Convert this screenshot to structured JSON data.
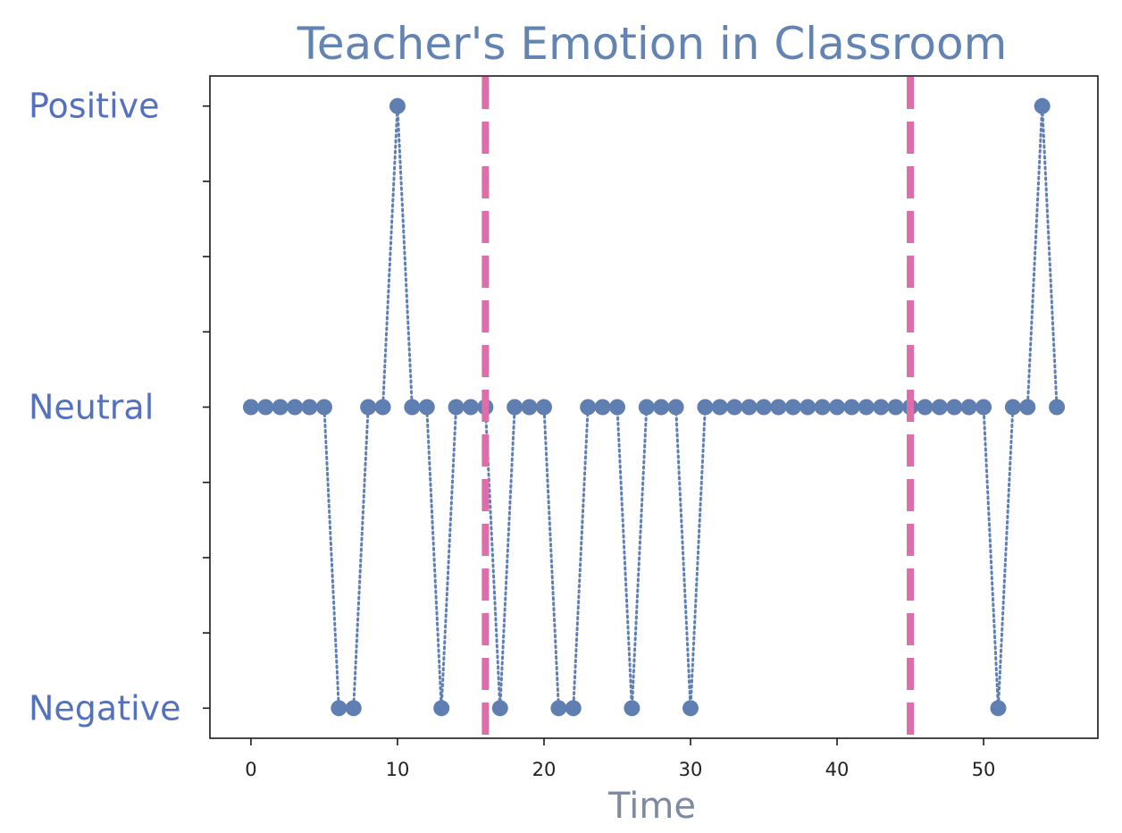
{
  "chart_data": {
    "type": "line",
    "title": "Teacher's Emotion in Classroom",
    "xlabel": "Time",
    "ylabel": "",
    "xlim": [
      -2.8,
      57.8
    ],
    "ylim": [
      -1.1,
      1.1
    ],
    "xticks": [
      0,
      10,
      20,
      30,
      40,
      50
    ],
    "xtick_labels": [
      "0",
      "10",
      "20",
      "30",
      "40",
      "50"
    ],
    "yticks": [
      -1,
      -0.75,
      -0.5,
      -0.25,
      0,
      0.25,
      0.5,
      0.75,
      1
    ],
    "category_labels": [
      {
        "value": 1,
        "label": "Positive"
      },
      {
        "value": 0,
        "label": "Neutral"
      },
      {
        "value": -1,
        "label": "Negative"
      }
    ],
    "series": [
      {
        "x": [
          0,
          1,
          2,
          3,
          4,
          5,
          6,
          7,
          8,
          9,
          10,
          11,
          12,
          13,
          14,
          15,
          16,
          17,
          18,
          19,
          20,
          21,
          22,
          23,
          24,
          25,
          26,
          27,
          28,
          29,
          30,
          31,
          32,
          33,
          34,
          35,
          36,
          37,
          38,
          39,
          40,
          41,
          42,
          43,
          44,
          45,
          46,
          47,
          48,
          49,
          50,
          51,
          52,
          53,
          54,
          55
        ],
        "values": [
          0,
          0,
          0,
          0,
          0,
          0,
          -1,
          -1,
          0,
          0,
          1,
          0,
          0,
          -1,
          0,
          0,
          0,
          -1,
          0,
          0,
          0,
          -1,
          -1,
          0,
          0,
          0,
          -1,
          0,
          0,
          0,
          -1,
          0,
          0,
          0,
          0,
          0,
          0,
          0,
          0,
          0,
          0,
          0,
          0,
          0,
          0,
          0,
          0,
          0,
          0,
          0,
          0,
          -1,
          0,
          0,
          1,
          0
        ],
        "color": "#5f7fb2",
        "line_style": "dotted",
        "marker": "circle"
      }
    ],
    "vlines": [
      {
        "x": 16,
        "color": "#dd6ea9",
        "style": "dashed"
      },
      {
        "x": 45,
        "color": "#dd6ea9",
        "style": "dashed"
      }
    ],
    "grid": false,
    "legend": "none"
  }
}
